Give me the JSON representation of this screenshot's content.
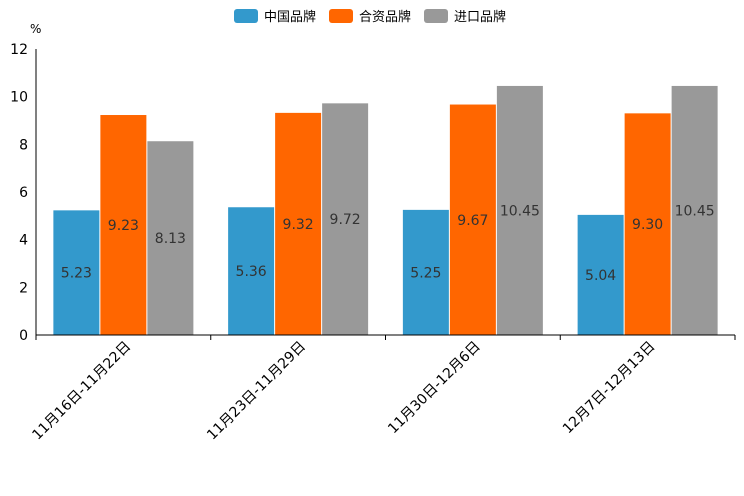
{
  "chart_data": {
    "type": "bar",
    "title": "",
    "xlabel": "",
    "ylabel": "%",
    "ylim": [
      0,
      12
    ],
    "yticks": [
      "0",
      "2",
      "4",
      "6",
      "8",
      "10",
      "12"
    ],
    "categories": [
      "11月16日-11月22日",
      "11月23日-11月29日",
      "11月30日-12月6日",
      "12月7日-12月13日"
    ],
    "series": [
      {
        "name": "中国品牌",
        "color": "#3399cc",
        "values": [
          5.23,
          5.36,
          5.25,
          5.04
        ],
        "labels": [
          "5.23",
          "5.36",
          "5.25",
          "5.04"
        ]
      },
      {
        "name": "合资品牌",
        "color": "#ff6600",
        "values": [
          9.23,
          9.32,
          9.67,
          9.3
        ],
        "labels": [
          "9.23",
          "9.32",
          "9.67",
          "9.30"
        ]
      },
      {
        "name": "进口品牌",
        "color": "#999999",
        "values": [
          8.13,
          9.72,
          10.45,
          10.45
        ],
        "labels": [
          "8.13",
          "9.72",
          "10.45",
          "10.45"
        ]
      }
    ],
    "legend_position": "top-center"
  }
}
